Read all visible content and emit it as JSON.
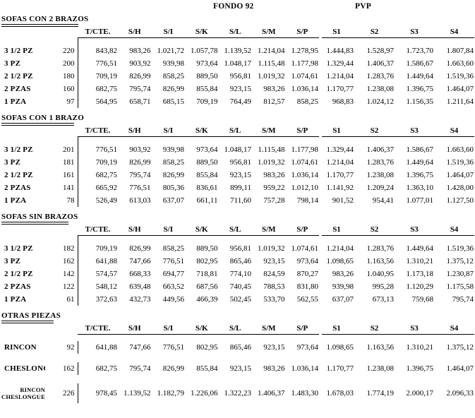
{
  "page": {
    "group_headers": [
      {
        "label": "FONDO 92"
      },
      {
        "label": "PVP"
      }
    ],
    "columns": [
      "T/CTE.",
      "S/H",
      "S/I",
      "S/K",
      "S/L",
      "S/M",
      "S/P",
      "S1",
      "S2",
      "S3",
      "S4"
    ],
    "colors": {
      "background": "#ffffff",
      "text": "#000000",
      "rule": "#000000"
    },
    "sections": [
      {
        "title": "SOFAS CON 2 BRAZOS",
        "spaced_rows": false,
        "rows": [
          {
            "label": "3 1/2 PZ",
            "size": "220",
            "values": [
              "843,82",
              "983,26",
              "1.021,72",
              "1.057,78",
              "1.139,52",
              "1.214,04",
              "1.278,95",
              "1.444,83",
              "1.528,97",
              "1.723,70",
              "1.807,84"
            ]
          },
          {
            "label": "3 PZ",
            "size": "200",
            "values": [
              "776,51",
              "903,92",
              "939,98",
              "973,64",
              "1.048,17",
              "1.115,48",
              "1.177,98",
              "1.329,44",
              "1.406,37",
              "1.586,67",
              "1.663,60"
            ]
          },
          {
            "label": "2 1/2 PZ",
            "size": "180",
            "values": [
              "709,19",
              "826,99",
              "858,25",
              "889,50",
              "956,81",
              "1.019,32",
              "1.074,61",
              "1.214,04",
              "1.283,76",
              "1.449,64",
              "1.519,36"
            ]
          },
          {
            "label": "2 PZAS",
            "size": "160",
            "values": [
              "682,75",
              "795,74",
              "826,99",
              "855,84",
              "923,15",
              "983,26",
              "1.036,14",
              "1.170,77",
              "1.238,08",
              "1.396,75",
              "1.464,07"
            ]
          },
          {
            "label": "1 PZA",
            "size": "97",
            "values": [
              "564,95",
              "658,71",
              "685,15",
              "709,19",
              "764,49",
              "812,57",
              "858,25",
              "968,83",
              "1.024,12",
              "1.156,35",
              "1.211,64"
            ]
          }
        ]
      },
      {
        "title": "SOFAS CON 1 BRAZO",
        "spaced_rows": false,
        "rows": [
          {
            "label": "3 1/2 PZ",
            "size": "201",
            "values": [
              "776,51",
              "903,92",
              "939,98",
              "973,64",
              "1.048,17",
              "1.115,48",
              "1.177,98",
              "1.329,44",
              "1.406,37",
              "1.586,67",
              "1.663,60"
            ]
          },
          {
            "label": "3 PZ",
            "size": "181",
            "values": [
              "709,19",
              "826,99",
              "858,25",
              "889,50",
              "956,81",
              "1.019,32",
              "1.074,61",
              "1.214,04",
              "1.283,76",
              "1.449,64",
              "1.519,36"
            ]
          },
          {
            "label": "2 1/2 PZ",
            "size": "161",
            "values": [
              "682,75",
              "795,74",
              "826,99",
              "855,84",
              "923,15",
              "983,26",
              "1.036,14",
              "1.170,77",
              "1.238,08",
              "1.396,75",
              "1.464,07"
            ]
          },
          {
            "label": "2 PZAS",
            "size": "141",
            "values": [
              "665,92",
              "776,51",
              "805,36",
              "836,61",
              "899,11",
              "959,22",
              "1.012,10",
              "1.141,92",
              "1.209,24",
              "1.363,10",
              "1.428,00"
            ]
          },
          {
            "label": "1 PZA",
            "size": "78",
            "values": [
              "526,49",
              "613,03",
              "637,07",
              "661,11",
              "711,60",
              "757,28",
              "798,14",
              "901,52",
              "954,41",
              "1.077,01",
              "1.127,50"
            ]
          }
        ]
      },
      {
        "title": "SOFAS SIN BRAZOS",
        "spaced_rows": false,
        "rows": [
          {
            "label": "3 1/2 PZ",
            "size": "182",
            "values": [
              "709,19",
              "826,99",
              "858,25",
              "889,50",
              "956,81",
              "1.019,32",
              "1.074,61",
              "1.214,04",
              "1.283,76",
              "1.449,64",
              "1.519,36"
            ]
          },
          {
            "label": "3 PZ",
            "size": "162",
            "values": [
              "641,88",
              "747,66",
              "776,51",
              "802,95",
              "865,46",
              "923,15",
              "973,64",
              "1.098,65",
              "1.163,56",
              "1.310,21",
              "1.375,12"
            ]
          },
          {
            "label": "2 1/2 PZ",
            "size": "142",
            "values": [
              "574,57",
              "668,33",
              "694,77",
              "718,81",
              "774,10",
              "824,59",
              "870,27",
              "983,26",
              "1.040,95",
              "1.173,18",
              "1.230,87"
            ]
          },
          {
            "label": "2 PZAS",
            "size": "122",
            "values": [
              "548,12",
              "639,48",
              "663,52",
              "687,56",
              "740,45",
              "788,53",
              "831,80",
              "939,98",
              "995,28",
              "1.120,29",
              "1.175,58"
            ]
          },
          {
            "label": "1 PZA",
            "size": "61",
            "values": [
              "372,63",
              "432,73",
              "449,56",
              "466,39",
              "502,45",
              "533,70",
              "562,55",
              "637,07",
              "673,13",
              "759,68",
              "795,74"
            ]
          }
        ]
      },
      {
        "title": "OTRAS PIEZAS",
        "spaced_rows": true,
        "rows": [
          {
            "label": "RINCON",
            "size": "92",
            "values": [
              "641,88",
              "747,66",
              "776,51",
              "802,95",
              "865,46",
              "923,15",
              "973,64",
              "1.098,65",
              "1.163,56",
              "1.310,21",
              "1.375,12"
            ]
          },
          {
            "label": "CHESLONGUE",
            "size": "162",
            "values": [
              "682,75",
              "795,74",
              "826,99",
              "855,84",
              "923,15",
              "983,26",
              "1.036,14",
              "1.170,77",
              "1.238,08",
              "1.396,75",
              "1.464,07"
            ]
          },
          {
            "label": "RINCON CHESLONGUE",
            "label_lines": [
              "RINCON",
              "CHESLONGUE"
            ],
            "size": "226",
            "values": [
              "978,45",
              "1.139,52",
              "1.182,79",
              "1.226,06",
              "1.322,23",
              "1.406,37",
              "1.483,30",
              "1.678,03",
              "1.774,19",
              "2.000,17",
              "2.096,33"
            ]
          }
        ]
      }
    ]
  }
}
